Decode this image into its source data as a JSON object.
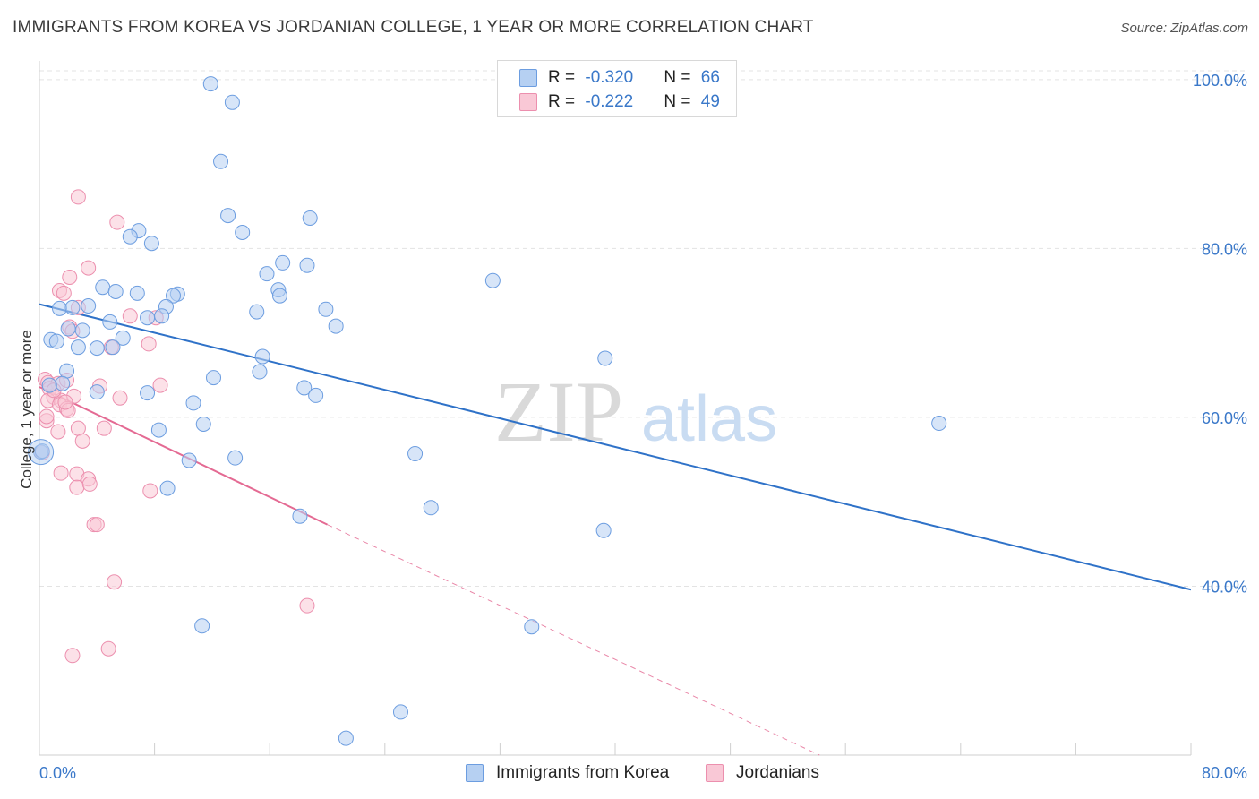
{
  "header": {
    "title": "IMMIGRANTS FROM KOREA VS JORDANIAN COLLEGE, 1 YEAR OR MORE CORRELATION CHART",
    "source": "Source: ZipAtlas.com"
  },
  "watermark": {
    "zip": "ZIP",
    "atlas": "atlas"
  },
  "legend": {
    "series": [
      {
        "r_label": "R = ",
        "r_value": "-0.320",
        "n_label": "N = ",
        "n_value": "66"
      },
      {
        "r_label": "R = ",
        "r_value": "-0.222",
        "n_label": "N = ",
        "n_value": "49"
      }
    ]
  },
  "chart_data": {
    "type": "scatter",
    "title": "IMMIGRANTS FROM KOREA VS JORDANIAN COLLEGE, 1 YEAR OR MORE CORRELATION CHART",
    "xlabel": "",
    "ylabel": "College, 1 year or more",
    "xlim": [
      0,
      80
    ],
    "ylim": [
      20,
      102
    ],
    "x_tick_labels": [
      "0.0%",
      "80.0%"
    ],
    "y_ticks": [
      40,
      60,
      80,
      100
    ],
    "y_tick_labels": [
      "40.0%",
      "60.0%",
      "80.0%",
      "100.0%"
    ],
    "grid": true,
    "legend_position": "top-center",
    "colors": {
      "korea_fill": "#b6d0f2",
      "korea_stroke": "#6c9de0",
      "korea_line": "#2f72c8",
      "jordan_fill": "#f9c8d6",
      "jordan_stroke": "#ec8fae",
      "jordan_line": "#e46a93",
      "axis_text": "#3a78c9"
    },
    "series": [
      {
        "name": "Immigrants from Korea",
        "trend": {
          "x0": 0,
          "y0": 73.4,
          "x1": 80,
          "y1": 39.6
        },
        "points": [
          [
            11.9,
            99.5
          ],
          [
            13.4,
            97.3
          ],
          [
            12.6,
            90.3
          ],
          [
            13.1,
            83.9
          ],
          [
            18.8,
            83.6
          ],
          [
            6.9,
            82.1
          ],
          [
            7.8,
            80.6
          ],
          [
            6.3,
            81.4
          ],
          [
            14.1,
            81.9
          ],
          [
            16.9,
            78.3
          ],
          [
            18.6,
            78.0
          ],
          [
            15.8,
            77.0
          ],
          [
            31.5,
            76.2
          ],
          [
            4.4,
            75.4
          ],
          [
            6.8,
            74.7
          ],
          [
            9.6,
            74.6
          ],
          [
            9.3,
            74.4
          ],
          [
            16.6,
            75.1
          ],
          [
            16.7,
            74.4
          ],
          [
            5.3,
            74.9
          ],
          [
            3.4,
            73.2
          ],
          [
            1.4,
            72.9
          ],
          [
            8.8,
            73.1
          ],
          [
            2.3,
            73.0
          ],
          [
            15.1,
            72.5
          ],
          [
            19.9,
            72.8
          ],
          [
            8.5,
            72.0
          ],
          [
            7.5,
            71.8
          ],
          [
            4.9,
            71.3
          ],
          [
            20.6,
            70.8
          ],
          [
            3.0,
            70.3
          ],
          [
            2.0,
            70.5
          ],
          [
            0.8,
            69.2
          ],
          [
            1.2,
            69.0
          ],
          [
            5.8,
            69.4
          ],
          [
            2.7,
            68.3
          ],
          [
            4.0,
            68.2
          ],
          [
            5.1,
            68.3
          ],
          [
            39.3,
            67.0
          ],
          [
            15.5,
            67.2
          ],
          [
            1.9,
            65.5
          ],
          [
            15.3,
            65.4
          ],
          [
            12.1,
            64.7
          ],
          [
            18.4,
            63.5
          ],
          [
            7.5,
            62.9
          ],
          [
            19.2,
            62.6
          ],
          [
            10.7,
            61.7
          ],
          [
            11.4,
            59.2
          ],
          [
            62.5,
            59.3
          ],
          [
            8.3,
            58.5
          ],
          [
            26.1,
            55.7
          ],
          [
            10.4,
            54.9
          ],
          [
            13.6,
            55.2
          ],
          [
            0.1,
            55.9
          ],
          [
            0.2,
            56.0
          ],
          [
            8.9,
            51.6
          ],
          [
            18.1,
            48.3
          ],
          [
            27.2,
            49.3
          ],
          [
            39.2,
            46.6
          ],
          [
            11.3,
            35.3
          ],
          [
            34.2,
            35.2
          ],
          [
            25.1,
            25.1
          ],
          [
            21.3,
            22.0
          ],
          [
            1.6,
            64.0
          ],
          [
            0.7,
            63.8
          ],
          [
            4.0,
            63.0
          ]
        ]
      },
      {
        "name": "Jordanians",
        "trend": {
          "x0": 0,
          "y0": 63.6,
          "x1": 20.0,
          "y1": 47.3,
          "dash_x1": 54.2,
          "dash_y1": 20.0
        },
        "points": [
          [
            2.7,
            86.1
          ],
          [
            5.4,
            83.1
          ],
          [
            3.4,
            77.7
          ],
          [
            2.1,
            76.6
          ],
          [
            1.4,
            75.0
          ],
          [
            1.7,
            74.7
          ],
          [
            2.7,
            73.0
          ],
          [
            6.3,
            72.0
          ],
          [
            8.1,
            71.8
          ],
          [
            2.1,
            70.7
          ],
          [
            2.3,
            70.2
          ],
          [
            5.0,
            68.3
          ],
          [
            7.6,
            68.7
          ],
          [
            0.4,
            64.5
          ],
          [
            0.6,
            64.1
          ],
          [
            1.3,
            64.0
          ],
          [
            1.9,
            64.4
          ],
          [
            0.7,
            63.4
          ],
          [
            4.2,
            63.7
          ],
          [
            8.4,
            63.8
          ],
          [
            1.0,
            62.4
          ],
          [
            0.6,
            62.0
          ],
          [
            1.5,
            62.0
          ],
          [
            5.6,
            62.3
          ],
          [
            1.4,
            61.5
          ],
          [
            1.9,
            61.0
          ],
          [
            2.0,
            60.8
          ],
          [
            0.5,
            59.6
          ],
          [
            2.7,
            58.7
          ],
          [
            4.5,
            58.7
          ],
          [
            1.3,
            58.3
          ],
          [
            0.2,
            55.8
          ],
          [
            3.0,
            57.2
          ],
          [
            1.5,
            53.4
          ],
          [
            2.6,
            53.3
          ],
          [
            3.4,
            52.7
          ],
          [
            2.6,
            51.7
          ],
          [
            3.5,
            52.1
          ],
          [
            7.7,
            51.3
          ],
          [
            3.8,
            47.3
          ],
          [
            4.0,
            47.3
          ],
          [
            5.2,
            40.5
          ],
          [
            18.6,
            37.7
          ],
          [
            4.8,
            32.6
          ],
          [
            2.3,
            31.8
          ],
          [
            0.5,
            60.1
          ],
          [
            1.0,
            63.2
          ],
          [
            2.4,
            62.5
          ],
          [
            1.8,
            61.8
          ]
        ]
      }
    ]
  },
  "bottom_legend": {
    "korea_label": "Immigrants from Korea",
    "jordan_label": "Jordanians"
  }
}
